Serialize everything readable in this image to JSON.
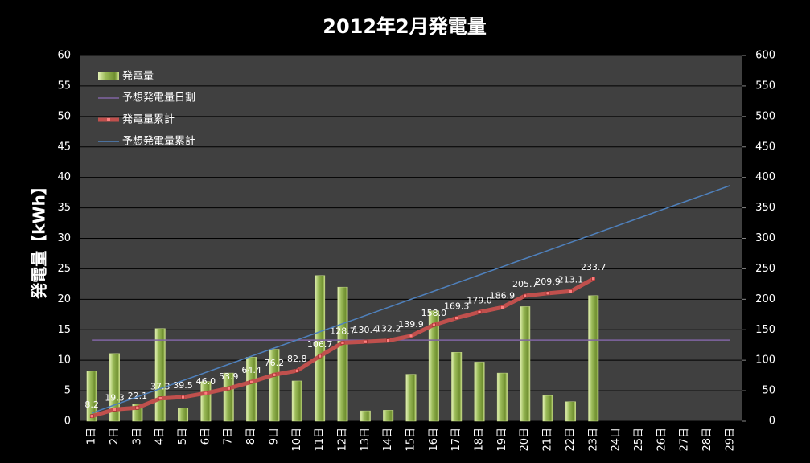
{
  "chart_data": {
    "type": "bar",
    "title": "2012年2月発電量",
    "y_label": "発電量【kWh】",
    "categories": [
      "1日",
      "2日",
      "3日",
      "4日",
      "5日",
      "6日",
      "7日",
      "8日",
      "9日",
      "10日",
      "11日",
      "12日",
      "13日",
      "14日",
      "15日",
      "16日",
      "17日",
      "18日",
      "19日",
      "20日",
      "21日",
      "22日",
      "23日",
      "24日",
      "25日",
      "26日",
      "27日",
      "28日",
      "29日"
    ],
    "ylim": [
      0,
      60
    ],
    "yticks": [
      0,
      5,
      10,
      15,
      20,
      25,
      30,
      35,
      40,
      45,
      50,
      55,
      60
    ],
    "y2lim": [
      0,
      600
    ],
    "y2ticks": [
      0,
      50,
      100,
      150,
      200,
      250,
      300,
      350,
      400,
      450,
      500,
      550,
      600
    ],
    "grid": true,
    "legend": "top-left",
    "series": [
      {
        "name": "発電量",
        "type": "bar",
        "color": "#9bbb59",
        "axis": "y",
        "values": [
          8.2,
          11.1,
          2.8,
          15.2,
          2.2,
          6.5,
          7.9,
          10.5,
          11.8,
          6.6,
          23.9,
          22.0,
          1.7,
          1.8,
          7.7,
          18.1,
          11.3,
          9.7,
          7.9,
          18.8,
          4.2,
          3.2,
          20.6,
          null,
          null,
          null,
          null,
          null,
          null
        ]
      },
      {
        "name": "予想発電量日割",
        "type": "line",
        "color": "#8064a2",
        "axis": "y",
        "values": [
          13.3,
          13.3,
          13.3,
          13.3,
          13.3,
          13.3,
          13.3,
          13.3,
          13.3,
          13.3,
          13.3,
          13.3,
          13.3,
          13.3,
          13.3,
          13.3,
          13.3,
          13.3,
          13.3,
          13.3,
          13.3,
          13.3,
          13.3,
          13.3,
          13.3,
          13.3,
          13.3,
          13.3,
          13.3
        ]
      },
      {
        "name": "発電量累計",
        "type": "line",
        "color": "#c0504d",
        "axis": "y2",
        "markers": true,
        "values": [
          8.2,
          19.3,
          22.1,
          37.3,
          39.5,
          46.0,
          53.9,
          64.4,
          76.2,
          82.8,
          106.7,
          128.7,
          130.4,
          132.2,
          139.9,
          158.0,
          169.3,
          179.0,
          186.9,
          205.7,
          209.9,
          213.1,
          233.7,
          null,
          null,
          null,
          null,
          null,
          null
        ],
        "value_labels": [
          "8.2",
          "19.3",
          "22.1",
          "37.3",
          "39.5",
          "46.0",
          "53.9",
          "64.4",
          "76.2",
          "82.8",
          "106.7",
          "128.7",
          "130.4",
          "132.2",
          "139.9",
          "158.0",
          "169.3",
          "179.0",
          "186.9",
          "205.7",
          "209.9",
          "213.1",
          "233.7",
          null,
          null,
          null,
          null,
          null,
          null
        ]
      },
      {
        "name": "予想発電量累計",
        "type": "line",
        "color": "#4f81bd",
        "axis": "y2",
        "values": [
          13.3,
          26.7,
          40.0,
          53.3,
          66.7,
          80.0,
          93.3,
          106.7,
          120.0,
          133.3,
          146.7,
          160.0,
          173.3,
          186.7,
          200.0,
          213.3,
          226.7,
          240.0,
          253.3,
          266.7,
          280.0,
          293.3,
          306.7,
          320.0,
          333.3,
          346.7,
          360.0,
          373.3,
          386.7
        ]
      }
    ]
  }
}
